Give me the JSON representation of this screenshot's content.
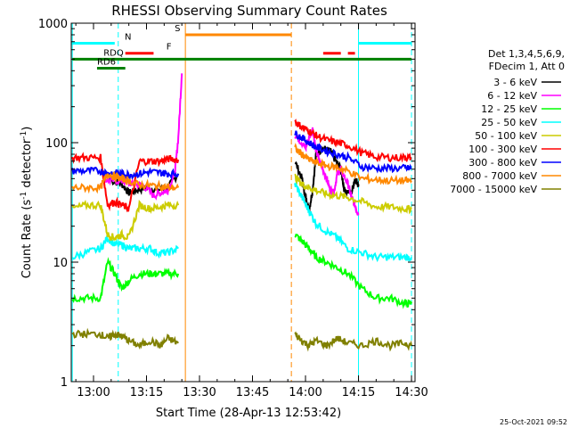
{
  "chart_data": {
    "type": "line",
    "title": "RHESSI Observing Summary Count Rates",
    "xlabel": "Start Time (28-Apr-13 12:53:42)",
    "ylabel": "Count Rate (s",
    "ylabel_sup1": "-1",
    "ylabel_mid": " detector",
    "ylabel_sup2": "-1",
    "ylabel_end": ")",
    "y_scale": "log",
    "ylim": [
      1,
      1000
    ],
    "xlim": [
      "12:53:42",
      "14:31:00"
    ],
    "x_ticks": [
      "13:00",
      "13:15",
      "13:30",
      "13:45",
      "14:00",
      "14:15",
      "14:30"
    ],
    "y_ticks": [
      "1",
      "10",
      "100",
      "1000"
    ],
    "timestamp": "25-Oct-2021 09:52",
    "legend_header": [
      "Det 1,3,4,5,6,9,",
      "FDecim 1, Att 0"
    ],
    "legend_position": "right",
    "series": [
      {
        "name": "3 - 6 keV",
        "color": "#000000",
        "segments": [
          [
            [
              "13:05",
              48
            ],
            [
              "13:08",
              45
            ],
            [
              "13:10",
              38
            ],
            [
              "13:12",
              40
            ],
            [
              "13:15",
              42
            ],
            [
              "13:18",
              40
            ],
            [
              "13:21",
              42
            ],
            [
              "13:24",
              55
            ]
          ],
          [
            [
              "13:57",
              70
            ],
            [
              "13:59",
              50
            ],
            [
              "14:00",
              35
            ],
            [
              "14:01",
              27
            ],
            [
              "14:02",
              40
            ],
            [
              "14:03",
              80
            ],
            [
              "14:05",
              90
            ],
            [
              "14:07",
              85
            ],
            [
              "14:08",
              75
            ],
            [
              "14:10",
              60
            ],
            [
              "14:11",
              40
            ],
            [
              "14:13",
              38
            ],
            [
              "14:14",
              50
            ],
            [
              "14:15",
              45
            ]
          ]
        ]
      },
      {
        "name": "6 - 12 keV",
        "color": "#ff00ff",
        "segments": [
          [
            [
              "13:03",
              50
            ],
            [
              "13:05",
              48
            ],
            [
              "13:08",
              48
            ],
            [
              "13:11",
              45
            ],
            [
              "13:14",
              44
            ],
            [
              "13:17",
              36
            ],
            [
              "13:19",
              38
            ],
            [
              "13:21",
              40
            ],
            [
              "13:23",
              55
            ],
            [
              "13:24",
              110
            ],
            [
              "13:25",
              380
            ]
          ],
          [
            [
              "13:57",
              115
            ],
            [
              "13:59",
              100
            ],
            [
              "14:00",
              90
            ],
            [
              "14:01",
              110
            ],
            [
              "14:02",
              130
            ],
            [
              "14:03",
              85
            ],
            [
              "14:04",
              70
            ],
            [
              "14:06",
              50
            ],
            [
              "14:07",
              40
            ],
            [
              "14:08",
              38
            ],
            [
              "14:09",
              55
            ],
            [
              "14:10",
              60
            ],
            [
              "14:12",
              45
            ],
            [
              "14:13",
              35
            ],
            [
              "14:14",
              30
            ],
            [
              "14:15",
              25
            ]
          ]
        ]
      },
      {
        "name": "12 - 25 keV",
        "color": "#00ff00",
        "segments": [
          [
            [
              "12:54",
              5
            ],
            [
              "12:58",
              5
            ],
            [
              "13:02",
              5
            ],
            [
              "13:04",
              10
            ],
            [
              "13:06",
              8
            ],
            [
              "13:08",
              6
            ],
            [
              "13:10",
              7
            ],
            [
              "13:13",
              8
            ],
            [
              "13:16",
              8
            ],
            [
              "13:18",
              8
            ],
            [
              "13:21",
              8
            ],
            [
              "13:24",
              8
            ]
          ],
          [
            [
              "13:57",
              17
            ],
            [
              "13:59",
              15
            ],
            [
              "14:01",
              13
            ],
            [
              "14:03",
              11
            ],
            [
              "14:06",
              10
            ],
            [
              "14:09",
              9
            ],
            [
              "14:12",
              8
            ],
            [
              "14:16",
              6
            ],
            [
              "14:20",
              5
            ],
            [
              "14:24",
              5
            ],
            [
              "14:28",
              4.5
            ],
            [
              "14:30",
              4.5
            ]
          ]
        ]
      },
      {
        "name": "25 - 50 keV",
        "color": "#00ffff",
        "segments": [
          [
            [
              "12:54",
              11
            ],
            [
              "12:58",
              12
            ],
            [
              "13:02",
              13
            ],
            [
              "13:04",
              16
            ],
            [
              "13:06",
              14
            ],
            [
              "13:08",
              14
            ],
            [
              "13:10",
              13
            ],
            [
              "13:13",
              13
            ],
            [
              "13:16",
              13
            ],
            [
              "13:18",
              12
            ],
            [
              "13:21",
              12
            ],
            [
              "13:24",
              13
            ]
          ],
          [
            [
              "13:57",
              45
            ],
            [
              "13:59",
              35
            ],
            [
              "14:01",
              27
            ],
            [
              "14:03",
              21
            ],
            [
              "14:06",
              18
            ],
            [
              "14:09",
              16
            ],
            [
              "14:12",
              13
            ],
            [
              "14:16",
              12
            ],
            [
              "14:20",
              11
            ],
            [
              "14:24",
              11
            ],
            [
              "14:28",
              11
            ],
            [
              "14:30",
              11
            ]
          ]
        ]
      },
      {
        "name": "50 - 100 keV",
        "color": "#cccc00",
        "segments": [
          [
            [
              "12:54",
              28
            ],
            [
              "12:58",
              30
            ],
            [
              "13:02",
              30
            ],
            [
              "13:04",
              17
            ],
            [
              "13:06",
              16
            ],
            [
              "13:08",
              17
            ],
            [
              "13:10",
              16
            ],
            [
              "13:13",
              30
            ],
            [
              "13:16",
              28
            ],
            [
              "13:19",
              29
            ],
            [
              "13:21",
              30
            ],
            [
              "13:24",
              30
            ]
          ],
          [
            [
              "13:57",
              52
            ],
            [
              "13:59",
              45
            ],
            [
              "14:01",
              42
            ],
            [
              "14:03",
              40
            ],
            [
              "14:06",
              37
            ],
            [
              "14:09",
              36
            ],
            [
              "14:12",
              35
            ],
            [
              "14:16",
              32
            ],
            [
              "14:20",
              29
            ],
            [
              "14:24",
              29
            ],
            [
              "14:28",
              28
            ],
            [
              "14:30",
              28
            ]
          ]
        ]
      },
      {
        "name": "100 - 300 keV",
        "color": "#ff0000",
        "segments": [
          [
            [
              "12:54",
              75
            ],
            [
              "12:58",
              75
            ],
            [
              "13:02",
              75
            ],
            [
              "13:04",
              30
            ],
            [
              "13:06",
              32
            ],
            [
              "13:08",
              30
            ],
            [
              "13:10",
              28
            ],
            [
              "13:13",
              70
            ],
            [
              "13:16",
              70
            ],
            [
              "13:19",
              70
            ],
            [
              "13:21",
              73
            ],
            [
              "13:24",
              72
            ]
          ],
          [
            [
              "13:57",
              150
            ],
            [
              "13:59",
              135
            ],
            [
              "14:01",
              125
            ],
            [
              "14:03",
              115
            ],
            [
              "14:06",
              105
            ],
            [
              "14:09",
              100
            ],
            [
              "14:12",
              95
            ],
            [
              "14:16",
              82
            ],
            [
              "14:20",
              76
            ],
            [
              "14:24",
              75
            ],
            [
              "14:28",
              75
            ],
            [
              "14:30",
              75
            ]
          ]
        ]
      },
      {
        "name": "300 - 800 keV",
        "color": "#0000ff",
        "segments": [
          [
            [
              "12:54",
              58
            ],
            [
              "12:58",
              58
            ],
            [
              "13:02",
              58
            ],
            [
              "13:04",
              55
            ],
            [
              "13:06",
              56
            ],
            [
              "13:08",
              55
            ],
            [
              "13:10",
              54
            ],
            [
              "13:13",
              55
            ],
            [
              "13:16",
              57
            ],
            [
              "13:19",
              56
            ],
            [
              "13:21",
              55
            ],
            [
              "13:24",
              55
            ]
          ],
          [
            [
              "13:57",
              120
            ],
            [
              "13:59",
              110
            ],
            [
              "14:01",
              100
            ],
            [
              "14:03",
              92
            ],
            [
              "14:06",
              85
            ],
            [
              "14:09",
              80
            ],
            [
              "14:12",
              75
            ],
            [
              "14:16",
              63
            ],
            [
              "14:20",
              61
            ],
            [
              "14:24",
              61
            ],
            [
              "14:28",
              61
            ],
            [
              "14:30",
              61
            ]
          ]
        ]
      },
      {
        "name": "800 - 7000 keV",
        "color": "#ff8800",
        "segments": [
          [
            [
              "12:54",
              42
            ],
            [
              "12:58",
              42
            ],
            [
              "13:02",
              42
            ],
            [
              "13:04",
              55
            ],
            [
              "13:06",
              52
            ],
            [
              "13:08",
              50
            ],
            [
              "13:10",
              48
            ],
            [
              "13:13",
              44
            ],
            [
              "13:16",
              44
            ],
            [
              "13:19",
              43
            ],
            [
              "13:21",
              42
            ],
            [
              "13:24",
              42
            ]
          ],
          [
            [
              "13:57",
              90
            ],
            [
              "13:59",
              80
            ],
            [
              "14:01",
              72
            ],
            [
              "14:03",
              68
            ],
            [
              "14:06",
              64
            ],
            [
              "14:09",
              62
            ],
            [
              "14:12",
              58
            ],
            [
              "14:16",
              50
            ],
            [
              "14:20",
              49
            ],
            [
              "14:24",
              48
            ],
            [
              "14:28",
              48
            ],
            [
              "14:30",
              48
            ]
          ]
        ]
      },
      {
        "name": "7000 - 15000 keV",
        "color": "#808000",
        "segments": [
          [
            [
              "12:54",
              2.5
            ],
            [
              "12:58",
              2.5
            ],
            [
              "13:02",
              2.5
            ],
            [
              "13:04",
              2.3
            ],
            [
              "13:06",
              2.5
            ],
            [
              "13:08",
              2.4
            ],
            [
              "13:10",
              2.2
            ],
            [
              "13:13",
              2.0
            ],
            [
              "13:16",
              2.2
            ],
            [
              "13:19",
              2.0
            ],
            [
              "13:21",
              2.3
            ],
            [
              "13:24",
              2.1
            ]
          ],
          [
            [
              "13:57",
              2.5
            ],
            [
              "13:59",
              2.2
            ],
            [
              "14:01",
              2.0
            ],
            [
              "14:03",
              2.2
            ],
            [
              "14:06",
              2.0
            ],
            [
              "14:09",
              2.3
            ],
            [
              "14:12",
              2.1
            ],
            [
              "14:16",
              2.0
            ],
            [
              "14:20",
              2.2
            ],
            [
              "14:24",
              2.0
            ],
            [
              "14:28",
              2.1
            ],
            [
              "14:30",
              2.0
            ]
          ]
        ]
      }
    ],
    "flag_bars": [
      {
        "label": "N",
        "color": "#00ffff",
        "level": 680,
        "ranges": [
          [
            "12:53:42",
            "13:06"
          ],
          [
            "14:15",
            "14:30"
          ]
        ]
      },
      {
        "label": "F",
        "color": "#ff0000",
        "level": 560,
        "ranges": [
          [
            "13:09",
            "13:17"
          ],
          [
            "14:05",
            "14:10"
          ],
          [
            "14:12",
            "14:14"
          ]
        ]
      },
      {
        "label": "S",
        "color": "#ff8800",
        "level": 800,
        "ranges": [
          [
            "13:26",
            "13:56"
          ]
        ]
      },
      {
        "label": "RDQ",
        "color": "#008000",
        "level": 500,
        "ranges": [
          [
            "12:54",
            "14:30"
          ]
        ]
      },
      {
        "label": "RD6",
        "color": "#008000",
        "level": 420,
        "ranges": [
          [
            "13:01",
            "13:09"
          ]
        ]
      }
    ],
    "vlines": [
      {
        "time": "12:54",
        "color": "#00ffff",
        "style": "solid"
      },
      {
        "time": "13:07",
        "color": "#00ffff",
        "style": "dashed"
      },
      {
        "time": "13:26",
        "color": "#ff8800",
        "style": "solid"
      },
      {
        "time": "13:56",
        "color": "#ff8800",
        "style": "dashed"
      },
      {
        "time": "14:15",
        "color": "#00ffff",
        "style": "solid"
      },
      {
        "time": "14:30",
        "color": "#00ffff",
        "style": "dashed"
      }
    ],
    "grid": false
  }
}
